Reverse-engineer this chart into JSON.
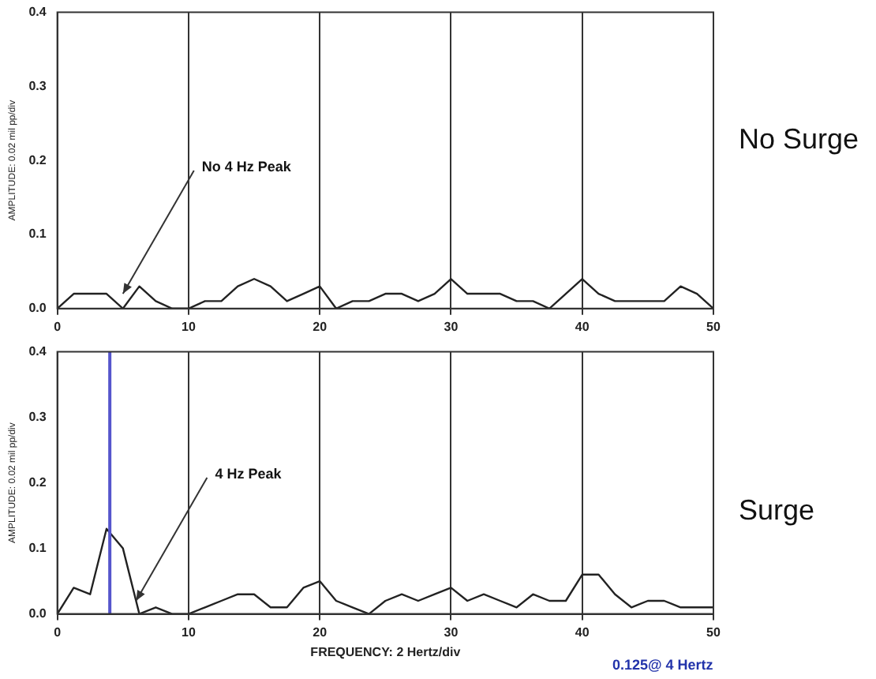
{
  "chart_data": [
    {
      "type": "line",
      "ylabel": "AMPLITUDE: 0.02 mil pp/div",
      "x": [
        0,
        1.25,
        2.5,
        3.75,
        5,
        6.25,
        7.5,
        8.75,
        10,
        11.25,
        12.5,
        13.75,
        15,
        16.25,
        17.5,
        18.75,
        20,
        21.25,
        22.5,
        23.75,
        25,
        26.25,
        27.5,
        28.75,
        30,
        31.25,
        32.5,
        33.75,
        35,
        36.25,
        37.5,
        38.75,
        40,
        41.25,
        42.5,
        43.75,
        45,
        46.25,
        47.5,
        48.75,
        50
      ],
      "series": [
        {
          "color": "#222222",
          "values": [
            0,
            0.02,
            0.02,
            0.02,
            0,
            0.03,
            0.01,
            0,
            0,
            0.01,
            0.01,
            0.03,
            0.04,
            0.03,
            0.01,
            0.02,
            0.03,
            0,
            0.01,
            0.01,
            0.02,
            0.02,
            0.01,
            0.02,
            0.04,
            0.02,
            0.02,
            0.02,
            0.01,
            0.01,
            0,
            0.02,
            0.04,
            0.02,
            0.01,
            0.01,
            0.01,
            0.01,
            0.03,
            0.02,
            0
          ]
        }
      ],
      "xlim": [
        0,
        50
      ],
      "xticks": [
        0,
        10,
        20,
        30,
        40,
        50
      ],
      "ylim": [
        0,
        0.4
      ],
      "yticks": [
        {
          "value": 0,
          "label": "0.0"
        },
        0.1,
        0.2,
        0.3,
        0.4
      ],
      "grid": "x",
      "legend": false,
      "marker": "none",
      "line_style": "solid",
      "annotations": [
        "No Surge",
        {
          "text": "No 4 Hz Peak",
          "x": 5,
          "y": 0.02
        }
      ]
    },
    {
      "type": "line",
      "ylabel": "AMPLITUDE: 0.02 mil pp/div",
      "xlabel": "FREQUENCY: 2 Hertz/div",
      "x": [
        0,
        1.25,
        2.5,
        3.75,
        5,
        6.25,
        7.5,
        8.75,
        10,
        11.25,
        12.5,
        13.75,
        15,
        16.25,
        17.5,
        18.75,
        20,
        21.25,
        22.5,
        23.75,
        25,
        26.25,
        27.5,
        28.75,
        30,
        31.25,
        32.5,
        33.75,
        35,
        36.25,
        37.5,
        38.75,
        40,
        41.25,
        42.5,
        43.75,
        45,
        46.25,
        47.5,
        48.75,
        50
      ],
      "series": [
        {
          "color": "#222222",
          "values": [
            0,
            0.04,
            0.03,
            0.13,
            0.1,
            0,
            0.01,
            0,
            0,
            0.01,
            0.02,
            0.03,
            0.03,
            0.01,
            0.01,
            0.04,
            0.05,
            0.02,
            0.01,
            0,
            0.02,
            0.03,
            0.02,
            0.03,
            0.04,
            0.02,
            0.03,
            0.02,
            0.01,
            0.03,
            0.02,
            0.02,
            0.06,
            0.06,
            0.03,
            0.01,
            0.02,
            0.02,
            0.01,
            0.01,
            0.01
          ]
        }
      ],
      "xlim": [
        0,
        50
      ],
      "xticks": [
        0,
        10,
        20,
        30,
        40,
        50
      ],
      "ylim": [
        0,
        0.4
      ],
      "yticks": [
        {
          "value": 0,
          "label": "0.0"
        },
        0.1,
        0.2,
        0.3,
        0.4
      ],
      "grid": "x",
      "legend": false,
      "marker": "none",
      "line_style": "solid",
      "ref_lines": [
        {
          "axis": "x",
          "value": 4,
          "color": "#5555cc"
        }
      ],
      "annotations": [
        "Surge",
        {
          "text": "4 Hz Peak",
          "x": 6,
          "y": 0.02
        },
        "0.125@ 4 Hertz"
      ]
    }
  ]
}
